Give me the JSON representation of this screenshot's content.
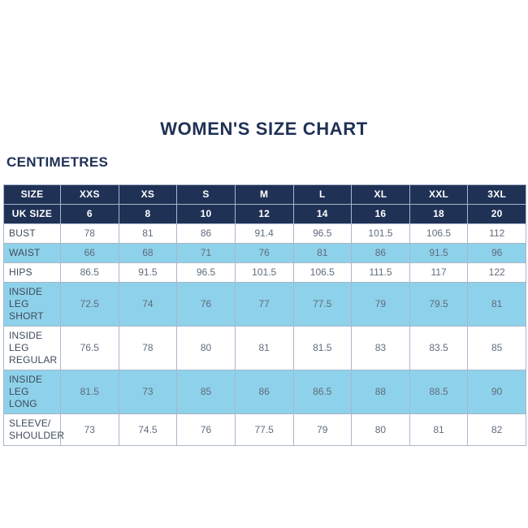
{
  "title": "WOMEN'S SIZE CHART",
  "section_label": "CENTIMETRES",
  "colors": {
    "navy": "#203156",
    "light_blue": "#8ed1ea",
    "border": "#a9b7ca",
    "label_text": "#3e4a5a",
    "value_text": "#606c7c",
    "header_text": "#ffffff"
  },
  "chart_data": {
    "type": "table",
    "title": "WOMEN'S SIZE CHART",
    "unit": "CENTIMETRES",
    "header_rows": [
      {
        "label": "SIZE",
        "values": [
          "XXS",
          "XS",
          "S",
          "M",
          "L",
          "XL",
          "XXL",
          "3XL"
        ]
      },
      {
        "label": "UK SIZE",
        "values": [
          "6",
          "8",
          "10",
          "12",
          "14",
          "16",
          "18",
          "20"
        ]
      }
    ],
    "rows": [
      {
        "label": "BUST",
        "values": [
          "78",
          "81",
          "86",
          "91.4",
          "96.5",
          "101.5",
          "106.5",
          "112"
        ],
        "shaded": false
      },
      {
        "label": "WAIST",
        "values": [
          "66",
          "68",
          "71",
          "76",
          "81",
          "86",
          "91.5",
          "96"
        ],
        "shaded": true
      },
      {
        "label": "HIPS",
        "values": [
          "86.5",
          "91.5",
          "96.5",
          "101.5",
          "106.5",
          "111.5",
          "117",
          "122"
        ],
        "shaded": false
      },
      {
        "label": "INSIDE LEG\nSHORT",
        "values": [
          "72.5",
          "74",
          "76",
          "77",
          "77.5",
          "79",
          "79.5",
          "81"
        ],
        "shaded": true
      },
      {
        "label": "INSIDE LEG\nREGULAR",
        "values": [
          "76.5",
          "78",
          "80",
          "81",
          "81.5",
          "83",
          "83.5",
          "85"
        ],
        "shaded": false
      },
      {
        "label": "INSIDE LEG\nLONG",
        "values": [
          "81.5",
          "73",
          "85",
          "86",
          "86.5",
          "88",
          "88.5",
          "90"
        ],
        "shaded": true
      },
      {
        "label": "SLEEVE/\nSHOULDER",
        "values": [
          "73",
          "74.5",
          "76",
          "77.5",
          "79",
          "80",
          "81",
          "82"
        ],
        "shaded": false
      }
    ]
  }
}
